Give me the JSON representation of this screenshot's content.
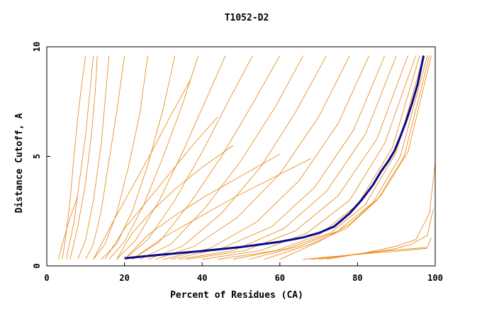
{
  "chart_data": {
    "type": "line",
    "title": "T1052-D2",
    "xlabel": "Percent of Residues (CA)",
    "ylabel": "Distance Cutoff, A",
    "xlim": [
      0,
      100
    ],
    "ylim": [
      0,
      10
    ],
    "x_ticks": [
      "0",
      "20",
      "40",
      "60",
      "80",
      "100"
    ],
    "y_ticks": [
      "0",
      "5",
      "10"
    ],
    "grid": false,
    "legend": "none",
    "colors": {
      "background_series": "#e8820c",
      "highlight_series": "#0a0a8c",
      "axis": "#000000"
    },
    "series": [
      {
        "role": "highlight",
        "x": [
          20,
          30,
          40,
          50,
          60,
          66,
          70,
          74,
          78,
          81,
          84,
          86,
          88,
          89.5,
          91,
          92.5,
          94,
          95.5,
          97
        ],
        "y": [
          0.35,
          0.52,
          0.68,
          0.86,
          1.1,
          1.3,
          1.5,
          1.8,
          2.4,
          3.0,
          3.7,
          4.3,
          4.8,
          5.25,
          5.9,
          6.6,
          7.4,
          8.3,
          9.6
        ]
      },
      {
        "role": "background",
        "x": [
          4,
          5,
          6,
          7,
          8,
          9,
          10
        ],
        "y": [
          0.3,
          1.5,
          3.0,
          5.0,
          6.8,
          8.3,
          9.6
        ]
      },
      {
        "role": "background",
        "x": [
          5,
          7,
          8.5,
          10,
          11,
          12
        ],
        "y": [
          0.3,
          2.0,
          4.0,
          6.0,
          7.8,
          9.6
        ]
      },
      {
        "role": "background",
        "x": [
          6,
          8,
          10,
          11.5,
          12.5,
          13
        ],
        "y": [
          0.3,
          1.8,
          3.8,
          6.0,
          8.0,
          9.6
        ]
      },
      {
        "role": "background",
        "x": [
          8,
          10,
          12,
          14,
          15,
          16
        ],
        "y": [
          0.3,
          1.2,
          3.0,
          5.5,
          7.5,
          9.6
        ]
      },
      {
        "role": "background",
        "x": [
          10,
          12,
          14,
          16,
          18,
          20
        ],
        "y": [
          0.3,
          1.0,
          2.5,
          4.8,
          7.0,
          9.6
        ]
      },
      {
        "role": "background",
        "x": [
          12,
          15,
          18,
          21,
          24,
          26
        ],
        "y": [
          0.3,
          1.0,
          2.4,
          4.5,
          7.0,
          9.6
        ]
      },
      {
        "role": "background",
        "x": [
          14,
          18,
          22,
          26,
          30,
          33
        ],
        "y": [
          0.3,
          1.0,
          2.5,
          4.6,
          7.2,
          9.6
        ]
      },
      {
        "role": "background",
        "x": [
          16,
          20,
          25,
          30,
          35,
          39
        ],
        "y": [
          0.3,
          1.1,
          2.8,
          5.0,
          7.4,
          9.6
        ]
      },
      {
        "role": "background",
        "x": [
          18,
          23,
          29,
          35,
          41,
          46
        ],
        "y": [
          0.3,
          1.2,
          3.0,
          5.2,
          7.6,
          9.6
        ]
      },
      {
        "role": "background",
        "x": [
          20,
          26,
          33,
          40,
          47,
          53
        ],
        "y": [
          0.3,
          1.2,
          3.0,
          5.2,
          7.6,
          9.6
        ]
      },
      {
        "role": "background",
        "x": [
          22,
          29,
          37,
          45,
          53,
          60
        ],
        "y": [
          0.3,
          1.1,
          2.9,
          5.0,
          7.4,
          9.6
        ]
      },
      {
        "role": "background",
        "x": [
          24,
          32,
          41,
          50,
          59,
          66
        ],
        "y": [
          0.3,
          1.0,
          2.7,
          4.8,
          7.3,
          9.6
        ]
      },
      {
        "role": "background",
        "x": [
          26,
          35,
          45,
          55,
          64,
          72
        ],
        "y": [
          0.3,
          0.9,
          2.4,
          4.5,
          7.0,
          9.6
        ]
      },
      {
        "role": "background",
        "x": [
          28,
          38,
          49,
          60,
          70,
          78
        ],
        "y": [
          0.3,
          0.9,
          2.2,
          4.2,
          6.8,
          9.6
        ]
      },
      {
        "role": "background",
        "x": [
          30,
          42,
          54,
          65,
          75,
          83
        ],
        "y": [
          0.3,
          0.8,
          2.0,
          3.9,
          6.5,
          9.6
        ]
      },
      {
        "role": "background",
        "x": [
          32,
          45,
          58,
          69,
          79,
          87
        ],
        "y": [
          0.3,
          0.8,
          1.8,
          3.6,
          6.2,
          9.6
        ]
      },
      {
        "role": "background",
        "x": [
          34,
          48,
          61,
          72,
          82,
          90
        ],
        "y": [
          0.3,
          0.7,
          1.7,
          3.4,
          6.0,
          9.6
        ]
      },
      {
        "role": "background",
        "x": [
          36,
          51,
          64,
          75,
          85,
          93
        ],
        "y": [
          0.3,
          0.7,
          1.6,
          3.2,
          5.8,
          9.6
        ]
      },
      {
        "role": "background",
        "x": [
          40,
          55,
          67,
          78,
          87,
          95
        ],
        "y": [
          0.3,
          0.7,
          1.5,
          3.0,
          5.6,
          9.6
        ]
      },
      {
        "role": "background",
        "x": [
          44,
          59,
          70,
          80,
          89,
          96
        ],
        "y": [
          0.3,
          0.7,
          1.4,
          2.8,
          5.4,
          9.6
        ]
      },
      {
        "role": "background",
        "x": [
          48,
          62,
          73,
          82,
          90,
          97
        ],
        "y": [
          0.3,
          0.8,
          1.5,
          2.8,
          5.2,
          9.6
        ]
      },
      {
        "role": "background",
        "x": [
          52,
          65,
          75,
          84,
          91,
          98
        ],
        "y": [
          0.3,
          0.9,
          1.6,
          2.9,
          5.0,
          9.6
        ]
      },
      {
        "role": "background",
        "x": [
          56,
          68,
          77,
          85,
          92,
          98.5
        ],
        "y": [
          0.3,
          1.0,
          1.7,
          3.0,
          5.0,
          9.6
        ]
      },
      {
        "role": "background",
        "x": [
          60,
          70,
          78,
          86,
          93,
          99
        ],
        "y": [
          0.3,
          1.1,
          1.9,
          3.2,
          5.2,
          9.6
        ]
      },
      {
        "role": "background",
        "x": [
          18,
          22,
          27,
          33,
          40,
          48
        ],
        "y": [
          0.3,
          1.5,
          2.5,
          3.5,
          4.5,
          5.5
        ]
      },
      {
        "role": "background",
        "x": [
          20,
          26,
          33,
          41,
          50,
          60
        ],
        "y": [
          0.3,
          1.4,
          2.3,
          3.2,
          4.1,
          5.1
        ]
      },
      {
        "role": "background",
        "x": [
          22,
          30,
          39,
          48,
          58,
          68
        ],
        "y": [
          0.3,
          1.3,
          2.2,
          3.1,
          4.0,
          4.9
        ]
      },
      {
        "role": "background",
        "x": [
          15,
          20,
          26,
          32,
          38,
          44
        ],
        "y": [
          0.3,
          1.7,
          3.0,
          4.3,
          5.6,
          6.8
        ]
      },
      {
        "role": "background",
        "x": [
          12,
          17,
          22,
          27,
          32,
          37
        ],
        "y": [
          0.3,
          2.0,
          3.6,
          5.2,
          6.9,
          8.5
        ]
      },
      {
        "role": "background",
        "x": [
          3,
          4,
          5,
          6,
          7,
          8
        ],
        "y": [
          0.3,
          1.0,
          1.6,
          2.2,
          2.7,
          3.2
        ]
      },
      {
        "role": "background",
        "x": [
          66,
          75,
          85,
          92,
          95,
          98
        ],
        "y": [
          0.3,
          0.45,
          0.6,
          0.7,
          0.75,
          0.8
        ]
      },
      {
        "role": "background",
        "x": [
          68,
          78,
          88,
          95,
          98,
          99
        ],
        "y": [
          0.3,
          0.5,
          0.7,
          0.8,
          0.85,
          1.3
        ]
      },
      {
        "role": "background",
        "x": [
          70,
          80,
          89,
          94,
          98,
          99.5
        ],
        "y": [
          0.3,
          0.55,
          0.75,
          1.0,
          1.4,
          2.6
        ]
      },
      {
        "role": "background",
        "x": [
          72,
          82,
          90,
          95,
          98.5,
          100
        ],
        "y": [
          0.3,
          0.6,
          0.9,
          1.2,
          2.4,
          4.7
        ]
      }
    ]
  }
}
